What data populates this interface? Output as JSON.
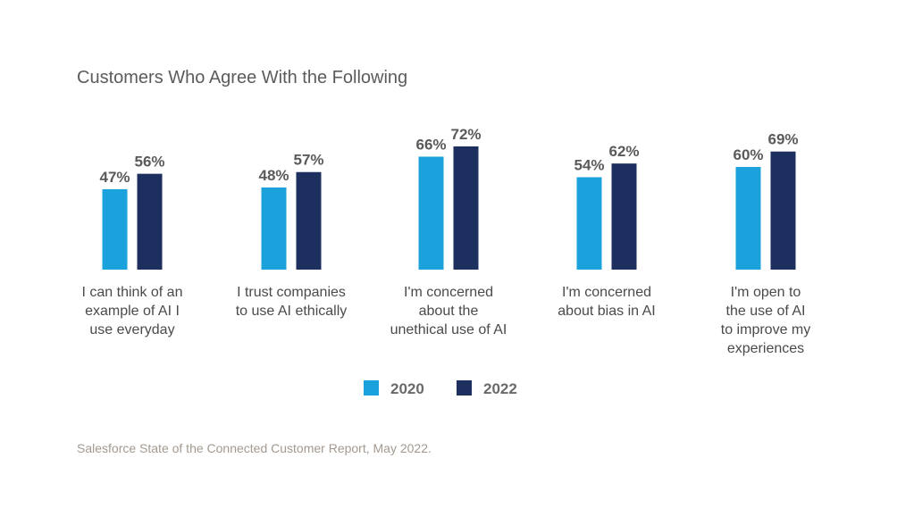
{
  "chart_data": {
    "type": "bar",
    "title": "Customers Who Agree With the Following",
    "categories": [
      [
        "I can think of an",
        "example of AI I",
        "use everyday"
      ],
      [
        "I trust companies",
        "to use AI ethically"
      ],
      [
        "I'm concerned",
        "about the",
        "unethical use of AI"
      ],
      [
        "I'm concerned",
        "about bias in AI"
      ],
      [
        "I'm open to",
        "the use of AI",
        "to improve my",
        "experiences"
      ]
    ],
    "series": [
      {
        "name": "2020",
        "color": "#1ba1db",
        "values": [
          47,
          48,
          66,
          54,
          60
        ]
      },
      {
        "name": "2022",
        "color": "#1c2f5e",
        "values": [
          56,
          57,
          72,
          62,
          69
        ]
      }
    ],
    "value_suffix": "%",
    "ylim": [
      0,
      100
    ],
    "grid": false,
    "legend": "bottom-center",
    "xlabel": "",
    "ylabel": ""
  },
  "source": "Salesforce State of the Connected Customer Report, May 2022."
}
